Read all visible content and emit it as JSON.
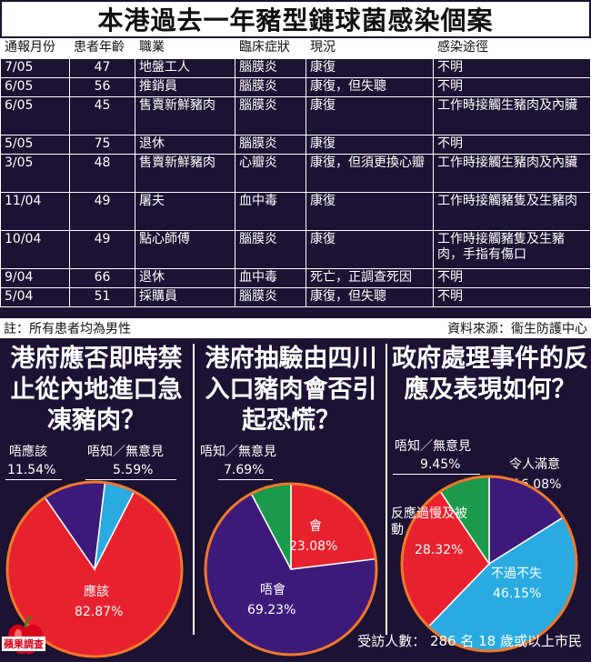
{
  "title": "本港過去一年豬型鏈球菌感染個案",
  "table": {
    "headers": [
      "通報月份",
      "患者年齡",
      "職業",
      "臨床症狀",
      "現況",
      "感染途徑"
    ],
    "rows": [
      [
        "7/05",
        "47",
        "地盤工人",
        "腦膜炎",
        "康復",
        "不明"
      ],
      [
        "6/05",
        "56",
        "推銷員",
        "腦膜炎",
        "康復，但失聰",
        "不明"
      ],
      [
        "6/05",
        "45",
        "售賣新鮮豬肉",
        "腦膜炎",
        "康復",
        "工作時接觸生豬肉及內臟"
      ],
      [
        "5/05",
        "75",
        "退休",
        "腦膜炎",
        "康復",
        "不明"
      ],
      [
        "3/05",
        "48",
        "售賣新鮮豬肉",
        "心瓣炎",
        "康復，但須更換心瓣",
        "工作時接觸生豬肉及內臟"
      ],
      [
        "11/04",
        "49",
        "屠夫",
        "血中毒",
        "康復",
        "工作時接觸豬隻及生豬肉"
      ],
      [
        "10/04",
        "49",
        "點心師傅",
        "腦膜炎",
        "康復",
        "工作時接觸豬隻及生豬肉，手指有傷口"
      ],
      [
        "9/04",
        "66",
        "退休",
        "血中毒",
        "死亡，正調查死因",
        "不明"
      ],
      [
        "5/04",
        "51",
        "採購員",
        "腦膜炎",
        "康復，但失聰",
        "不明"
      ]
    ]
  },
  "note_left": "註：所有患者均為男性",
  "note_right": "資料來源：衞生防護中心",
  "footer": "受訪人數：  286 名 18 歲或以上市民",
  "logo_text": "蘋果調查",
  "colors": {
    "red": "#e8212e",
    "purple": "#3d1a7a",
    "green": "#1a9a4a",
    "blue": "#29abe2",
    "orange": "#f0782a"
  },
  "chart_data": [
    {
      "type": "pie",
      "title": "港府應否即時禁止從內地進口急凍豬肉？",
      "slices": [
        {
          "label": "應該",
          "value": 82.87,
          "display": "82.87%",
          "color": "#e8212e"
        },
        {
          "label": "唔應該",
          "value": 11.54,
          "display": "11.54%",
          "color": "#3d1a7a"
        },
        {
          "label": "唔知／無意見",
          "value": 5.59,
          "display": "5.59%",
          "color": "#29abe2"
        }
      ]
    },
    {
      "type": "pie",
      "title": "港府抽驗由四川入口豬肉會否引起恐慌？",
      "slices": [
        {
          "label": "會",
          "value": 23.08,
          "display": "23.08%",
          "color": "#e8212e"
        },
        {
          "label": "唔會",
          "value": 69.23,
          "display": "69.23%",
          "color": "#3d1a7a"
        },
        {
          "label": "唔知／無意見",
          "value": 7.69,
          "display": "7.69%",
          "color": "#1a9a4a"
        }
      ]
    },
    {
      "type": "pie",
      "title": "政府處理事件的反應及表現如何？",
      "slices": [
        {
          "label": "令人滿意",
          "value": 16.08,
          "display": "16.08%",
          "color": "#3d1a7a"
        },
        {
          "label": "不過不失",
          "value": 46.15,
          "display": "46.15%",
          "color": "#29abe2"
        },
        {
          "label": "反應過慢及被動",
          "value": 28.32,
          "display": "28.32%",
          "color": "#e8212e"
        },
        {
          "label": "唔知／無意見",
          "value": 9.45,
          "display": "9.45%",
          "color": "#1a9a4a"
        }
      ]
    }
  ]
}
